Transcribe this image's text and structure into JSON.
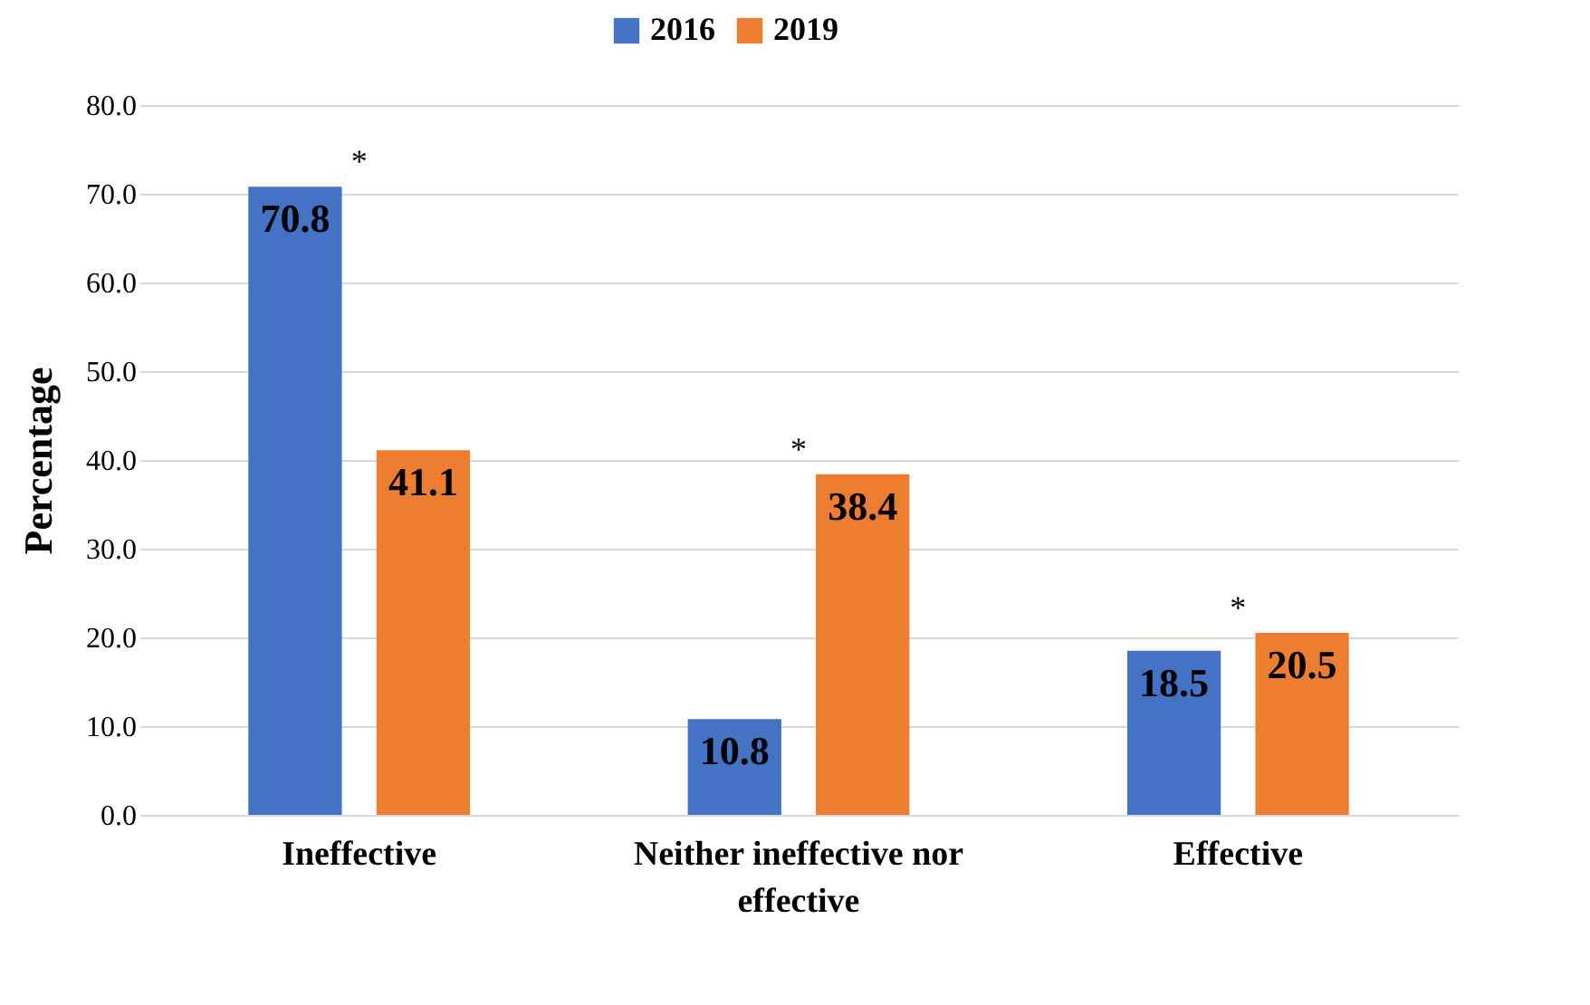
{
  "chart_data": {
    "type": "bar",
    "ylabel": "Percentage",
    "categories": [
      "Ineffective",
      "Neither ineffective nor effective",
      "Effective"
    ],
    "series": [
      {
        "name": "2016",
        "color": "#4472c4",
        "values": [
          70.8,
          10.8,
          18.5
        ]
      },
      {
        "name": "2019",
        "color": "#ed7d31",
        "values": [
          41.1,
          38.4,
          20.5
        ]
      }
    ],
    "ylim": [
      0,
      80
    ],
    "yticks": [
      {
        "value": 0,
        "label": "0.0"
      },
      {
        "value": 10,
        "label": "10.0"
      },
      {
        "value": 20,
        "label": "20.0"
      },
      {
        "value": 30,
        "label": "30.0"
      },
      {
        "value": 40,
        "label": "40.0"
      },
      {
        "value": 50,
        "label": "50.0"
      },
      {
        "value": 60,
        "label": "60.0"
      },
      {
        "value": 70,
        "label": "70.0"
      },
      {
        "value": 80,
        "label": "80.0"
      }
    ],
    "grid": "y",
    "legend": "top",
    "data_labels": true,
    "annotations": [
      "*",
      "*",
      "*"
    ]
  }
}
